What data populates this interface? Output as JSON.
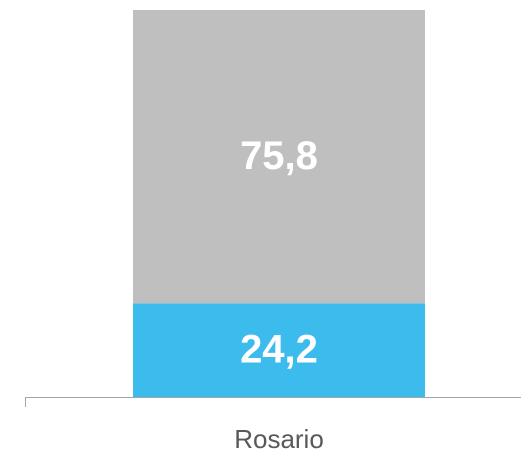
{
  "chart_data": {
    "type": "stacked_bar",
    "categories": [
      "Rosario"
    ],
    "series": [
      {
        "color": "#3bbced",
        "values": [
          24.2
        ],
        "value_labels": [
          "24,2"
        ]
      },
      {
        "color": "#bfbfbf",
        "values": [
          75.8
        ],
        "value_labels": [
          "75,8"
        ]
      }
    ]
  }
}
